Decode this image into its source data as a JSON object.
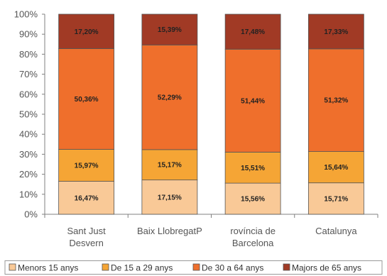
{
  "chart_data": {
    "type": "bar",
    "stacked": true,
    "categories": [
      [
        "Sant Just",
        "Desvern"
      ],
      [
        "Baix LlobregatP"
      ],
      [
        "rovíncia de",
        "Barcelona"
      ],
      [
        "Catalunya"
      ]
    ],
    "series": [
      {
        "name": "Menors 15 anys",
        "color": "#f9c997",
        "values": [
          16.47,
          17.15,
          15.56,
          15.71
        ],
        "labels": [
          "16,47%",
          "17,15%",
          "15,56%",
          "15,71%"
        ]
      },
      {
        "name": "De 15 a 29 anys",
        "color": "#f5a535",
        "values": [
          15.97,
          15.17,
          15.51,
          15.64
        ],
        "labels": [
          "15,97%",
          "15,17%",
          "15,51%",
          "15,64%"
        ]
      },
      {
        "name": "De 30 a 64 anys",
        "color": "#ef6f2c",
        "values": [
          50.36,
          52.29,
          51.44,
          51.32
        ],
        "labels": [
          "50,36%",
          "52,29%",
          "51,44%",
          "51,32%"
        ]
      },
      {
        "name": "Majors de 65 anys",
        "color": "#a13a25",
        "values": [
          17.2,
          15.39,
          17.48,
          17.33
        ],
        "labels": [
          "17,20%",
          "15,39%",
          "17,48%",
          "17,33%"
        ]
      }
    ],
    "yticks": [
      "0%",
      "10%",
      "20%",
      "30%",
      "40%",
      "50%",
      "60%",
      "70%",
      "80%",
      "90%",
      "100%"
    ],
    "ylim": [
      0,
      100
    ],
    "grid": false,
    "legend": "bottom"
  }
}
